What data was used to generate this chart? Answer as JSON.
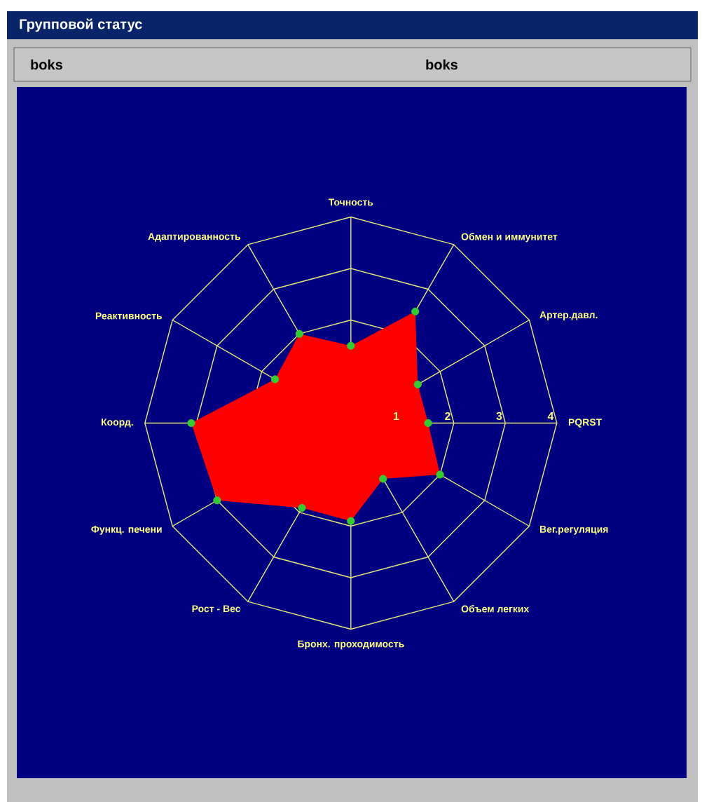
{
  "chart_data": {
    "type": "radar",
    "title": "Групповой статус",
    "annotations": [
      "boks",
      "boks"
    ],
    "categories": [
      "Точность",
      "Обмен и иммунитет",
      "Артер.давл.",
      "PQRST",
      "Вег.регуляция",
      "Объем легких",
      "Бронх. проходимость",
      "Рост - Вес",
      "Функц. печени",
      "Коорд.",
      "Реактивность",
      "Адаптированность"
    ],
    "series": [
      {
        "color": "#ff0000",
        "values": [
          1.5,
          2.5,
          1.5,
          1.5,
          2,
          1.25,
          1.9,
          1.9,
          3,
          3.1,
          1.7,
          2
        ]
      }
    ],
    "ylim": [
      0,
      4
    ],
    "yticks": [
      1,
      2,
      3,
      4
    ],
    "grid": true,
    "marker": "circle"
  }
}
